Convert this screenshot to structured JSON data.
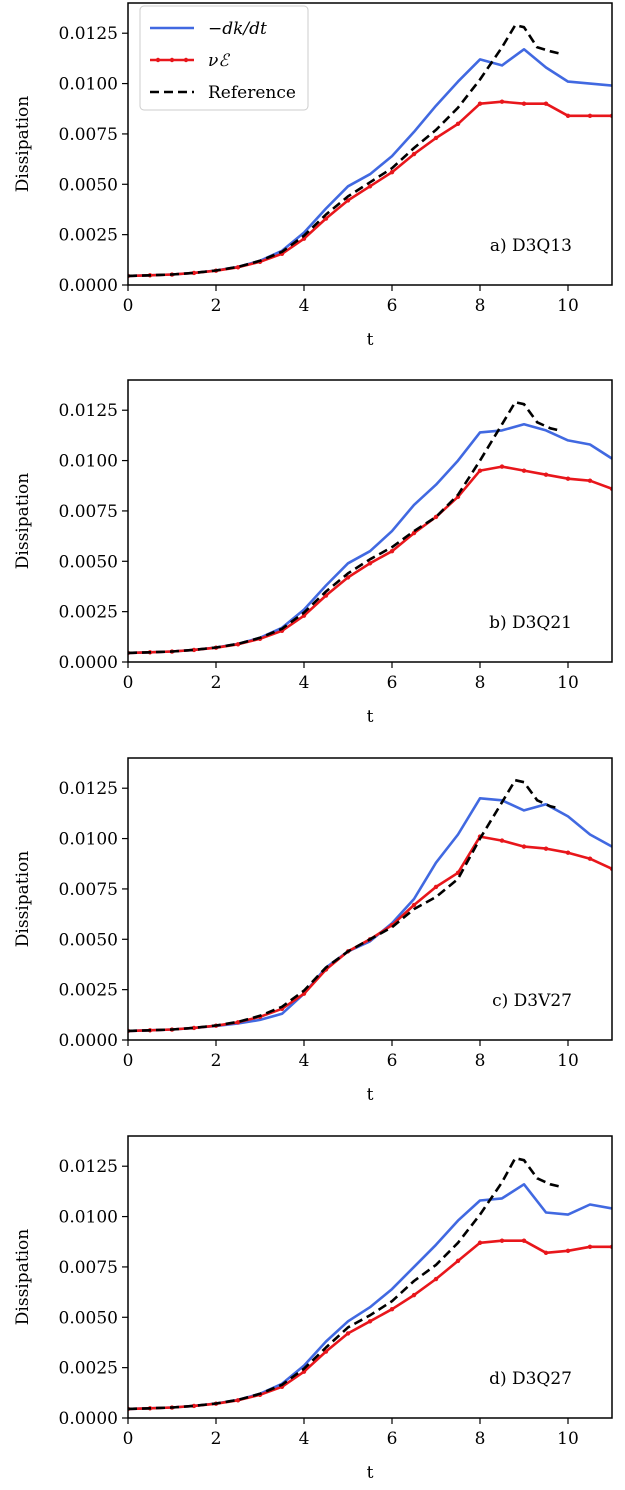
{
  "colors": {
    "dkdt": "#4169E1",
    "nuE": "#E8161B",
    "reference": "#000000"
  },
  "legend": {
    "items": [
      {
        "key": "dkdt",
        "label": "−dk/dt",
        "style": "solid"
      },
      {
        "key": "nuE",
        "label": "νℰ",
        "style": "marker"
      },
      {
        "key": "reference",
        "label": "Reference",
        "style": "dashed"
      }
    ]
  },
  "chart_data": [
    {
      "type": "line",
      "panel_label": "a) D3Q13",
      "xlabel": "t",
      "ylabel": "Dissipation",
      "xlim": [
        0,
        11
      ],
      "ylim": [
        0,
        0.014
      ],
      "xticks": [
        "0",
        "2",
        "4",
        "6",
        "8",
        "10"
      ],
      "yticks": [
        "0.0000",
        "0.0025",
        "0.0050",
        "0.0075",
        "0.0100",
        "0.0125"
      ],
      "series": [
        {
          "key": "dkdt",
          "x": [
            0,
            0.5,
            1,
            1.5,
            2,
            2.5,
            3,
            3.5,
            4,
            4.5,
            5,
            5.5,
            6,
            6.5,
            7,
            7.5,
            8,
            8.5,
            9,
            9.5,
            10,
            10.5,
            11
          ],
          "y": [
            0.00045,
            0.00048,
            0.00052,
            0.0006,
            0.00072,
            0.0009,
            0.0012,
            0.0017,
            0.0026,
            0.0038,
            0.0049,
            0.0055,
            0.0064,
            0.0076,
            0.0089,
            0.0101,
            0.0112,
            0.0109,
            0.0117,
            0.0108,
            0.0101,
            0.01,
            0.0099
          ]
        },
        {
          "key": "nuE",
          "x": [
            0,
            0.5,
            1,
            1.5,
            2,
            2.5,
            3,
            3.5,
            4,
            4.5,
            5,
            5.5,
            6,
            6.5,
            7,
            7.5,
            8,
            8.5,
            9,
            9.5,
            10,
            10.5,
            11
          ],
          "y": [
            0.00045,
            0.00048,
            0.00052,
            0.0006,
            0.00071,
            0.00088,
            0.00115,
            0.00155,
            0.0023,
            0.0033,
            0.0042,
            0.0049,
            0.0056,
            0.0065,
            0.0073,
            0.008,
            0.009,
            0.0091,
            0.009,
            0.009,
            0.0084,
            0.0084,
            0.0084
          ]
        },
        {
          "key": "reference",
          "x": [
            0,
            0.5,
            1,
            1.5,
            2,
            2.5,
            3,
            3.5,
            4,
            4.5,
            5,
            5.5,
            6,
            6.5,
            7,
            7.5,
            8,
            8.5,
            8.8,
            9.0,
            9.3,
            9.6,
            9.8
          ],
          "y": [
            0.00045,
            0.00048,
            0.00052,
            0.0006,
            0.00072,
            0.0009,
            0.0012,
            0.00165,
            0.00245,
            0.0035,
            0.0044,
            0.0051,
            0.0058,
            0.0068,
            0.0077,
            0.0088,
            0.0102,
            0.0118,
            0.0129,
            0.0128,
            0.0118,
            0.0116,
            0.0115
          ]
        }
      ]
    },
    {
      "type": "line",
      "panel_label": "b) D3Q21",
      "xlabel": "t",
      "ylabel": "Dissipation",
      "xlim": [
        0,
        11
      ],
      "ylim": [
        0,
        0.014
      ],
      "xticks": [
        "0",
        "2",
        "4",
        "6",
        "8",
        "10"
      ],
      "yticks": [
        "0.0000",
        "0.0025",
        "0.0050",
        "0.0075",
        "0.0100",
        "0.0125"
      ],
      "series": [
        {
          "key": "dkdt",
          "x": [
            0,
            0.5,
            1,
            1.5,
            2,
            2.5,
            3,
            3.5,
            4,
            4.5,
            5,
            5.5,
            6,
            6.5,
            7,
            7.5,
            8,
            8.5,
            9,
            9.5,
            10,
            10.5,
            11
          ],
          "y": [
            0.00045,
            0.00048,
            0.00052,
            0.0006,
            0.00072,
            0.0009,
            0.0012,
            0.0017,
            0.0026,
            0.0038,
            0.0049,
            0.0055,
            0.0065,
            0.0078,
            0.0088,
            0.01,
            0.0114,
            0.0115,
            0.0118,
            0.0115,
            0.011,
            0.0108,
            0.0101
          ]
        },
        {
          "key": "nuE",
          "x": [
            0,
            0.5,
            1,
            1.5,
            2,
            2.5,
            3,
            3.5,
            4,
            4.5,
            5,
            5.5,
            6,
            6.5,
            7,
            7.5,
            8,
            8.5,
            9,
            9.5,
            10,
            10.5,
            11
          ],
          "y": [
            0.00045,
            0.00048,
            0.00052,
            0.0006,
            0.00071,
            0.00088,
            0.00115,
            0.00155,
            0.0023,
            0.0033,
            0.0042,
            0.0049,
            0.0055,
            0.0064,
            0.0072,
            0.0082,
            0.0095,
            0.0097,
            0.0095,
            0.0093,
            0.0091,
            0.009,
            0.0086
          ]
        },
        {
          "key": "reference",
          "x": [
            0,
            0.5,
            1,
            1.5,
            2,
            2.5,
            3,
            3.5,
            4,
            4.5,
            5,
            5.5,
            6,
            6.5,
            7,
            7.5,
            8,
            8.5,
            8.8,
            9.0,
            9.3,
            9.6,
            9.8
          ],
          "y": [
            0.00045,
            0.00048,
            0.00052,
            0.0006,
            0.00072,
            0.0009,
            0.0012,
            0.00165,
            0.00245,
            0.0035,
            0.0044,
            0.0051,
            0.0057,
            0.0065,
            0.0072,
            0.0083,
            0.01,
            0.0118,
            0.0129,
            0.0128,
            0.0119,
            0.0116,
            0.0115
          ]
        }
      ]
    },
    {
      "type": "line",
      "panel_label": "c) D3V27",
      "xlabel": "t",
      "ylabel": "Dissipation",
      "xlim": [
        0,
        11
      ],
      "ylim": [
        0,
        0.014
      ],
      "xticks": [
        "0",
        "2",
        "4",
        "6",
        "8",
        "10"
      ],
      "yticks": [
        "0.0000",
        "0.0025",
        "0.0050",
        "0.0075",
        "0.0100",
        "0.0125"
      ],
      "series": [
        {
          "key": "dkdt",
          "x": [
            0,
            0.5,
            1,
            1.5,
            2,
            2.5,
            3,
            3.5,
            4,
            4.5,
            5,
            5.5,
            6,
            6.5,
            7,
            7.5,
            8,
            8.5,
            9,
            9.5,
            10,
            10.5,
            11
          ],
          "y": [
            0.00045,
            0.00048,
            0.00052,
            0.0006,
            0.0007,
            0.00082,
            0.001,
            0.0013,
            0.0023,
            0.0036,
            0.0044,
            0.0049,
            0.0058,
            0.007,
            0.0088,
            0.0102,
            0.012,
            0.0119,
            0.0114,
            0.0117,
            0.0111,
            0.0102,
            0.0096
          ]
        },
        {
          "key": "nuE",
          "x": [
            0,
            0.5,
            1,
            1.5,
            2,
            2.5,
            3,
            3.5,
            4,
            4.5,
            5,
            5.5,
            6,
            6.5,
            7,
            7.5,
            8,
            8.5,
            9,
            9.5,
            10,
            10.5,
            11
          ],
          "y": [
            0.00045,
            0.00048,
            0.00052,
            0.0006,
            0.00071,
            0.00088,
            0.00115,
            0.00155,
            0.0023,
            0.0035,
            0.0044,
            0.005,
            0.0057,
            0.0067,
            0.0076,
            0.0083,
            0.0101,
            0.0099,
            0.0096,
            0.0095,
            0.0093,
            0.009,
            0.0085
          ]
        },
        {
          "key": "reference",
          "x": [
            0,
            0.5,
            1,
            1.5,
            2,
            2.5,
            3,
            3.5,
            4,
            4.5,
            5,
            5.5,
            6,
            6.5,
            7,
            7.5,
            8,
            8.5,
            8.8,
            9.0,
            9.3,
            9.6,
            9.8
          ],
          "y": [
            0.00045,
            0.00048,
            0.00052,
            0.0006,
            0.00072,
            0.0009,
            0.0012,
            0.00165,
            0.00245,
            0.0036,
            0.0044,
            0.005,
            0.0056,
            0.0065,
            0.0071,
            0.008,
            0.01,
            0.0118,
            0.0129,
            0.0128,
            0.0119,
            0.0116,
            0.0115
          ]
        }
      ]
    },
    {
      "type": "line",
      "panel_label": "d) D3Q27",
      "xlabel": "t",
      "ylabel": "Dissipation",
      "xlim": [
        0,
        11
      ],
      "ylim": [
        0,
        0.014
      ],
      "xticks": [
        "0",
        "2",
        "4",
        "6",
        "8",
        "10"
      ],
      "yticks": [
        "0.0000",
        "0.0025",
        "0.0050",
        "0.0075",
        "0.0100",
        "0.0125"
      ],
      "series": [
        {
          "key": "dkdt",
          "x": [
            0,
            0.5,
            1,
            1.5,
            2,
            2.5,
            3,
            3.5,
            4,
            4.5,
            5,
            5.5,
            6,
            6.5,
            7,
            7.5,
            8,
            8.5,
            9,
            9.5,
            10,
            10.5,
            11
          ],
          "y": [
            0.00045,
            0.00048,
            0.00052,
            0.0006,
            0.00072,
            0.0009,
            0.0012,
            0.0017,
            0.0026,
            0.0038,
            0.0048,
            0.0055,
            0.0064,
            0.0075,
            0.0086,
            0.0098,
            0.0108,
            0.0109,
            0.0116,
            0.0102,
            0.0101,
            0.0106,
            0.0104
          ]
        },
        {
          "key": "nuE",
          "x": [
            0,
            0.5,
            1,
            1.5,
            2,
            2.5,
            3,
            3.5,
            4,
            4.5,
            5,
            5.5,
            6,
            6.5,
            7,
            7.5,
            8,
            8.5,
            9,
            9.5,
            10,
            10.5,
            11
          ],
          "y": [
            0.00045,
            0.00048,
            0.00052,
            0.0006,
            0.00071,
            0.00088,
            0.00115,
            0.00155,
            0.0023,
            0.0033,
            0.0042,
            0.0048,
            0.0054,
            0.0061,
            0.0069,
            0.0078,
            0.0087,
            0.0088,
            0.0088,
            0.0082,
            0.0083,
            0.0085,
            0.0085
          ]
        },
        {
          "key": "reference",
          "x": [
            0,
            0.5,
            1,
            1.5,
            2,
            2.5,
            3,
            3.5,
            4,
            4.5,
            5,
            5.5,
            6,
            6.5,
            7,
            7.5,
            8,
            8.5,
            8.8,
            9.0,
            9.3,
            9.6,
            9.8
          ],
          "y": [
            0.00045,
            0.00048,
            0.00052,
            0.0006,
            0.00072,
            0.0009,
            0.0012,
            0.00165,
            0.00245,
            0.0035,
            0.0045,
            0.0051,
            0.0058,
            0.0068,
            0.0076,
            0.0087,
            0.0101,
            0.0117,
            0.0129,
            0.0128,
            0.0119,
            0.0116,
            0.0115
          ]
        }
      ]
    }
  ]
}
